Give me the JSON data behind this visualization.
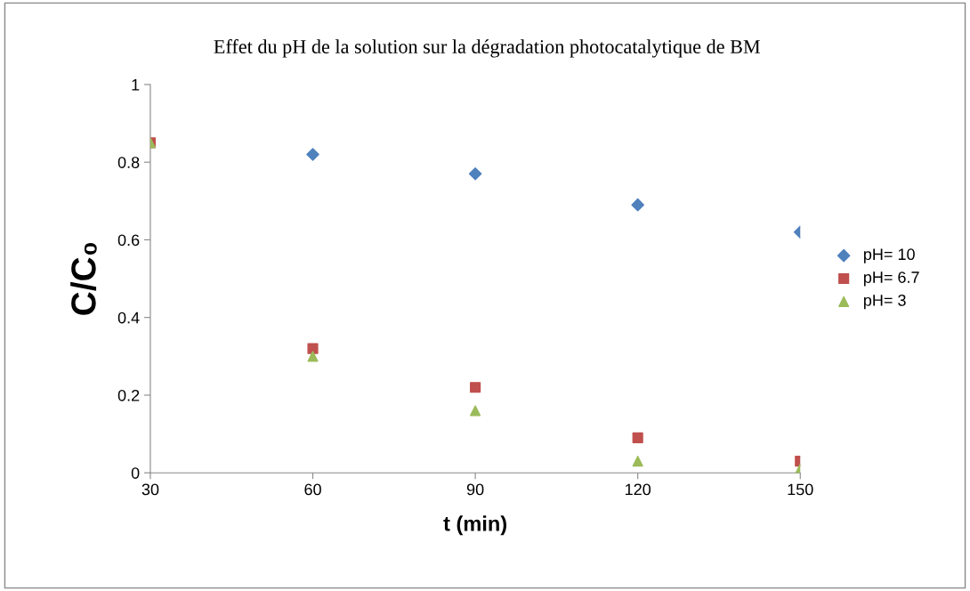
{
  "chart_data": {
    "type": "scatter",
    "title": "Effet du pH de la solution sur la dégradation photocatalytique de BM",
    "xlabel": "t (min)",
    "ylabel": "C/C₀",
    "x": [
      30,
      60,
      90,
      120,
      150
    ],
    "series": [
      {
        "name": "pH= 10",
        "color": "#4f81bd",
        "marker": "diamond",
        "values": [
          null,
          0.82,
          0.77,
          0.69,
          0.62
        ]
      },
      {
        "name": "pH= 6.7",
        "color": "#c0504d",
        "marker": "square",
        "values": [
          0.85,
          0.32,
          0.22,
          0.09,
          0.03
        ]
      },
      {
        "name": "pH= 3",
        "color": "#9bbb59",
        "marker": "triangle",
        "values": [
          0.85,
          0.3,
          0.16,
          0.03,
          0.01
        ]
      }
    ],
    "xlim": [
      30,
      150
    ],
    "xticks": [
      30,
      60,
      90,
      120,
      150
    ],
    "ylim": [
      0,
      1
    ],
    "yticks": [
      0,
      0.2,
      0.4,
      0.6,
      0.8,
      1
    ],
    "grid": false,
    "legend": "right"
  }
}
